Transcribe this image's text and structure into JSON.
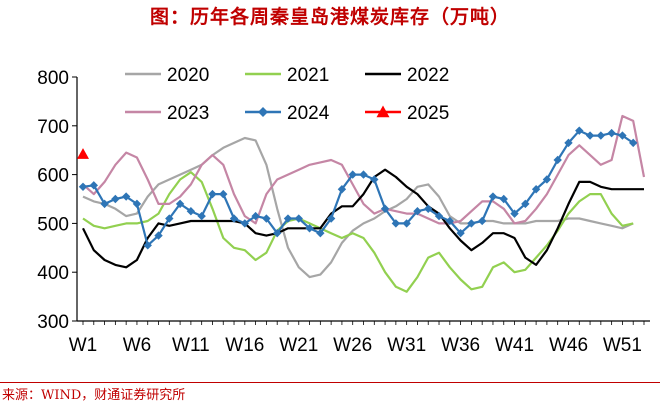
{
  "title": "图：历年各周秦皇岛港煤炭库存（万吨）",
  "source": "来源：WIND，财通证券研究所",
  "chart_data": {
    "type": "line",
    "title": "图：历年各周秦皇岛港煤炭库存（万吨）",
    "xlabel": "",
    "ylabel": "",
    "ylim": [
      300,
      800
    ],
    "yticks": [
      300,
      400,
      500,
      600,
      700,
      800
    ],
    "xlim": [
      1,
      53
    ],
    "xticks": [
      1,
      6,
      11,
      16,
      21,
      26,
      31,
      36,
      41,
      46,
      51
    ],
    "xtick_labels": [
      "W1",
      "W6",
      "W11",
      "W16",
      "W21",
      "W26",
      "W31",
      "W36",
      "W41",
      "W46",
      "W51"
    ],
    "legend_position": "top",
    "grid": false,
    "series": [
      {
        "name": "2020",
        "color": "#a6a6a6",
        "marker": "none",
        "values": [
          [
            1,
            555
          ],
          [
            2,
            545
          ],
          [
            3,
            540
          ],
          [
            4,
            530
          ],
          [
            5,
            515
          ],
          [
            6,
            520
          ],
          [
            7,
            555
          ],
          [
            8,
            580
          ],
          [
            9,
            590
          ],
          [
            10,
            600
          ],
          [
            11,
            610
          ],
          [
            12,
            620
          ],
          [
            13,
            640
          ],
          [
            14,
            655
          ],
          [
            15,
            665
          ],
          [
            16,
            675
          ],
          [
            17,
            670
          ],
          [
            18,
            620
          ],
          [
            19,
            530
          ],
          [
            20,
            450
          ],
          [
            21,
            410
          ],
          [
            22,
            390
          ],
          [
            23,
            395
          ],
          [
            24,
            420
          ],
          [
            25,
            460
          ],
          [
            26,
            485
          ],
          [
            27,
            500
          ],
          [
            28,
            510
          ],
          [
            29,
            525
          ],
          [
            30,
            535
          ],
          [
            31,
            550
          ],
          [
            32,
            575
          ],
          [
            33,
            580
          ],
          [
            34,
            555
          ],
          [
            35,
            515
          ],
          [
            36,
            500
          ],
          [
            37,
            500
          ],
          [
            38,
            505
          ],
          [
            39,
            505
          ],
          [
            40,
            500
          ],
          [
            41,
            500
          ],
          [
            42,
            500
          ],
          [
            43,
            505
          ],
          [
            44,
            505
          ],
          [
            45,
            505
          ],
          [
            46,
            510
          ],
          [
            47,
            510
          ],
          [
            48,
            505
          ],
          [
            49,
            500
          ],
          [
            50,
            495
          ],
          [
            51,
            490
          ],
          [
            52,
            500
          ]
        ]
      },
      {
        "name": "2021",
        "color": "#92d050",
        "marker": "none",
        "values": [
          [
            1,
            510
          ],
          [
            2,
            495
          ],
          [
            3,
            490
          ],
          [
            4,
            495
          ],
          [
            5,
            500
          ],
          [
            6,
            500
          ],
          [
            7,
            505
          ],
          [
            8,
            520
          ],
          [
            9,
            560
          ],
          [
            10,
            590
          ],
          [
            11,
            605
          ],
          [
            12,
            585
          ],
          [
            13,
            530
          ],
          [
            14,
            470
          ],
          [
            15,
            450
          ],
          [
            16,
            445
          ],
          [
            17,
            425
          ],
          [
            18,
            440
          ],
          [
            19,
            485
          ],
          [
            20,
            505
          ],
          [
            21,
            510
          ],
          [
            22,
            500
          ],
          [
            23,
            490
          ],
          [
            24,
            480
          ],
          [
            25,
            470
          ],
          [
            26,
            480
          ],
          [
            27,
            470
          ],
          [
            28,
            440
          ],
          [
            29,
            400
          ],
          [
            30,
            370
          ],
          [
            31,
            360
          ],
          [
            32,
            390
          ],
          [
            33,
            430
          ],
          [
            34,
            440
          ],
          [
            35,
            410
          ],
          [
            36,
            385
          ],
          [
            37,
            365
          ],
          [
            38,
            370
          ],
          [
            39,
            410
          ],
          [
            40,
            420
          ],
          [
            41,
            400
          ],
          [
            42,
            405
          ],
          [
            43,
            430
          ],
          [
            44,
            455
          ],
          [
            45,
            485
          ],
          [
            46,
            520
          ],
          [
            47,
            545
          ],
          [
            48,
            560
          ],
          [
            49,
            560
          ],
          [
            50,
            520
          ],
          [
            51,
            495
          ],
          [
            52,
            500
          ]
        ]
      },
      {
        "name": "2022",
        "color": "#000000",
        "marker": "none",
        "values": [
          [
            1,
            490
          ],
          [
            2,
            445
          ],
          [
            3,
            425
          ],
          [
            4,
            415
          ],
          [
            5,
            410
          ],
          [
            6,
            425
          ],
          [
            7,
            470
          ],
          [
            8,
            500
          ],
          [
            9,
            495
          ],
          [
            10,
            500
          ],
          [
            11,
            505
          ],
          [
            12,
            505
          ],
          [
            13,
            505
          ],
          [
            14,
            505
          ],
          [
            15,
            505
          ],
          [
            16,
            500
          ],
          [
            17,
            480
          ],
          [
            18,
            475
          ],
          [
            19,
            480
          ],
          [
            20,
            490
          ],
          [
            21,
            490
          ],
          [
            22,
            490
          ],
          [
            23,
            490
          ],
          [
            24,
            520
          ],
          [
            25,
            535
          ],
          [
            26,
            535
          ],
          [
            27,
            560
          ],
          [
            28,
            595
          ],
          [
            29,
            610
          ],
          [
            30,
            595
          ],
          [
            31,
            575
          ],
          [
            32,
            560
          ],
          [
            33,
            535
          ],
          [
            34,
            520
          ],
          [
            35,
            490
          ],
          [
            36,
            465
          ],
          [
            37,
            445
          ],
          [
            38,
            460
          ],
          [
            39,
            480
          ],
          [
            40,
            480
          ],
          [
            41,
            470
          ],
          [
            42,
            430
          ],
          [
            43,
            415
          ],
          [
            44,
            445
          ],
          [
            45,
            490
          ],
          [
            46,
            540
          ],
          [
            47,
            585
          ],
          [
            48,
            585
          ],
          [
            49,
            575
          ],
          [
            50,
            570
          ],
          [
            51,
            570
          ],
          [
            52,
            570
          ],
          [
            53,
            570
          ]
        ]
      },
      {
        "name": "2023",
        "color": "#c586a5",
        "marker": "none",
        "values": [
          [
            1,
            580
          ],
          [
            2,
            560
          ],
          [
            3,
            585
          ],
          [
            4,
            620
          ],
          [
            5,
            645
          ],
          [
            6,
            635
          ],
          [
            7,
            590
          ],
          [
            8,
            540
          ],
          [
            9,
            540
          ],
          [
            10,
            555
          ],
          [
            11,
            580
          ],
          [
            12,
            620
          ],
          [
            13,
            640
          ],
          [
            14,
            620
          ],
          [
            15,
            560
          ],
          [
            16,
            515
          ],
          [
            17,
            500
          ],
          [
            18,
            560
          ],
          [
            19,
            590
          ],
          [
            20,
            600
          ],
          [
            21,
            610
          ],
          [
            22,
            620
          ],
          [
            23,
            625
          ],
          [
            24,
            630
          ],
          [
            25,
            620
          ],
          [
            26,
            580
          ],
          [
            27,
            540
          ],
          [
            28,
            520
          ],
          [
            29,
            530
          ],
          [
            30,
            525
          ],
          [
            31,
            520
          ],
          [
            32,
            520
          ],
          [
            33,
            510
          ],
          [
            34,
            500
          ],
          [
            35,
            500
          ],
          [
            36,
            505
          ],
          [
            37,
            525
          ],
          [
            38,
            545
          ],
          [
            39,
            545
          ],
          [
            40,
            530
          ],
          [
            41,
            500
          ],
          [
            42,
            505
          ],
          [
            43,
            530
          ],
          [
            44,
            560
          ],
          [
            45,
            600
          ],
          [
            46,
            640
          ],
          [
            47,
            660
          ],
          [
            48,
            640
          ],
          [
            49,
            620
          ],
          [
            50,
            630
          ],
          [
            51,
            720
          ],
          [
            52,
            710
          ],
          [
            53,
            595
          ]
        ]
      },
      {
        "name": "2024",
        "color": "#2e75b6",
        "marker": "diamond",
        "values": [
          [
            1,
            575
          ],
          [
            2,
            578
          ],
          [
            3,
            540
          ],
          [
            4,
            550
          ],
          [
            5,
            555
          ],
          [
            6,
            540
          ],
          [
            7,
            455
          ],
          [
            8,
            475
          ],
          [
            9,
            510
          ],
          [
            10,
            540
          ],
          [
            11,
            525
          ],
          [
            12,
            515
          ],
          [
            13,
            560
          ],
          [
            14,
            560
          ],
          [
            15,
            510
          ],
          [
            16,
            500
          ],
          [
            17,
            515
          ],
          [
            18,
            510
          ],
          [
            19,
            480
          ],
          [
            20,
            510
          ],
          [
            21,
            510
          ],
          [
            22,
            490
          ],
          [
            23,
            480
          ],
          [
            24,
            510
          ],
          [
            25,
            570
          ],
          [
            26,
            600
          ],
          [
            27,
            600
          ],
          [
            28,
            590
          ],
          [
            29,
            530
          ],
          [
            30,
            500
          ],
          [
            31,
            500
          ],
          [
            32,
            525
          ],
          [
            33,
            530
          ],
          [
            34,
            515
          ],
          [
            35,
            505
          ],
          [
            36,
            480
          ],
          [
            37,
            500
          ],
          [
            38,
            505
          ],
          [
            39,
            555
          ],
          [
            40,
            550
          ],
          [
            41,
            520
          ],
          [
            42,
            540
          ],
          [
            43,
            570
          ],
          [
            44,
            590
          ],
          [
            45,
            630
          ],
          [
            46,
            665
          ],
          [
            47,
            690
          ],
          [
            48,
            680
          ],
          [
            49,
            680
          ],
          [
            50,
            685
          ],
          [
            51,
            680
          ],
          [
            52,
            665
          ]
        ]
      },
      {
        "name": "2025",
        "color": "#ff0000",
        "marker": "triangle",
        "values": [
          [
            1,
            642
          ]
        ]
      }
    ]
  }
}
